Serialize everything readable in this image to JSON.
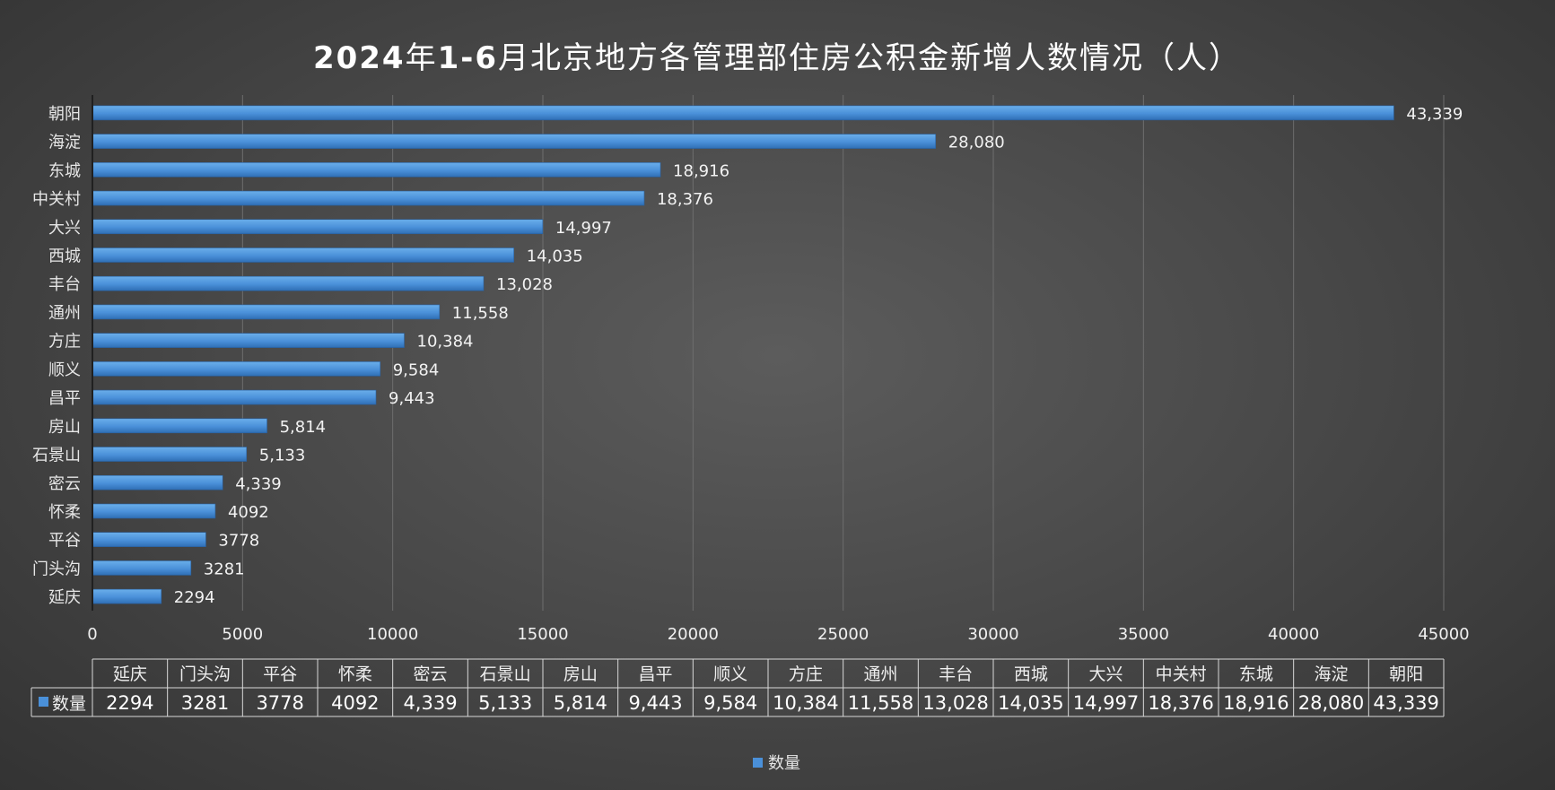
{
  "title_parts": [
    "2024",
    "年",
    "1-6",
    "月北京地方各管理部住房公积金新增人数情况（人）"
  ],
  "colors": {
    "bar": "#4a90d9",
    "bar_light": "#6aaeea",
    "bar_dark": "#2f6fb5",
    "grid": "#6e6e6e",
    "axis": "#d0d0d0"
  },
  "chart_data": {
    "type": "bar",
    "orientation": "horizontal",
    "categories": [
      "延庆",
      "门头沟",
      "平谷",
      "怀柔",
      "密云",
      "石景山",
      "房山",
      "昌平",
      "顺义",
      "方庄",
      "通州",
      "丰台",
      "西城",
      "大兴",
      "中关村",
      "东城",
      "海淀",
      "朝阳"
    ],
    "series": [
      {
        "name": "数量",
        "values": [
          2294,
          3281,
          3778,
          4092,
          4339,
          5133,
          5814,
          9443,
          9584,
          10384,
          11558,
          13028,
          14035,
          14997,
          18376,
          18916,
          28080,
          43339
        ],
        "labels": [
          "2294",
          "3281",
          "3778",
          "4092",
          "4,339",
          "5,133",
          "5,814",
          "9,443",
          "9,584",
          "10,384",
          "11,558",
          "13,028",
          "14,035",
          "14,997",
          "18,376",
          "18,916",
          "28,080",
          "43,339"
        ]
      }
    ],
    "xlim": [
      0,
      45000
    ],
    "xticks": [
      0,
      5000,
      10000,
      15000,
      20000,
      25000,
      30000,
      35000,
      40000,
      45000
    ],
    "grid": true,
    "data_table": true,
    "legend_position": "bottom"
  }
}
